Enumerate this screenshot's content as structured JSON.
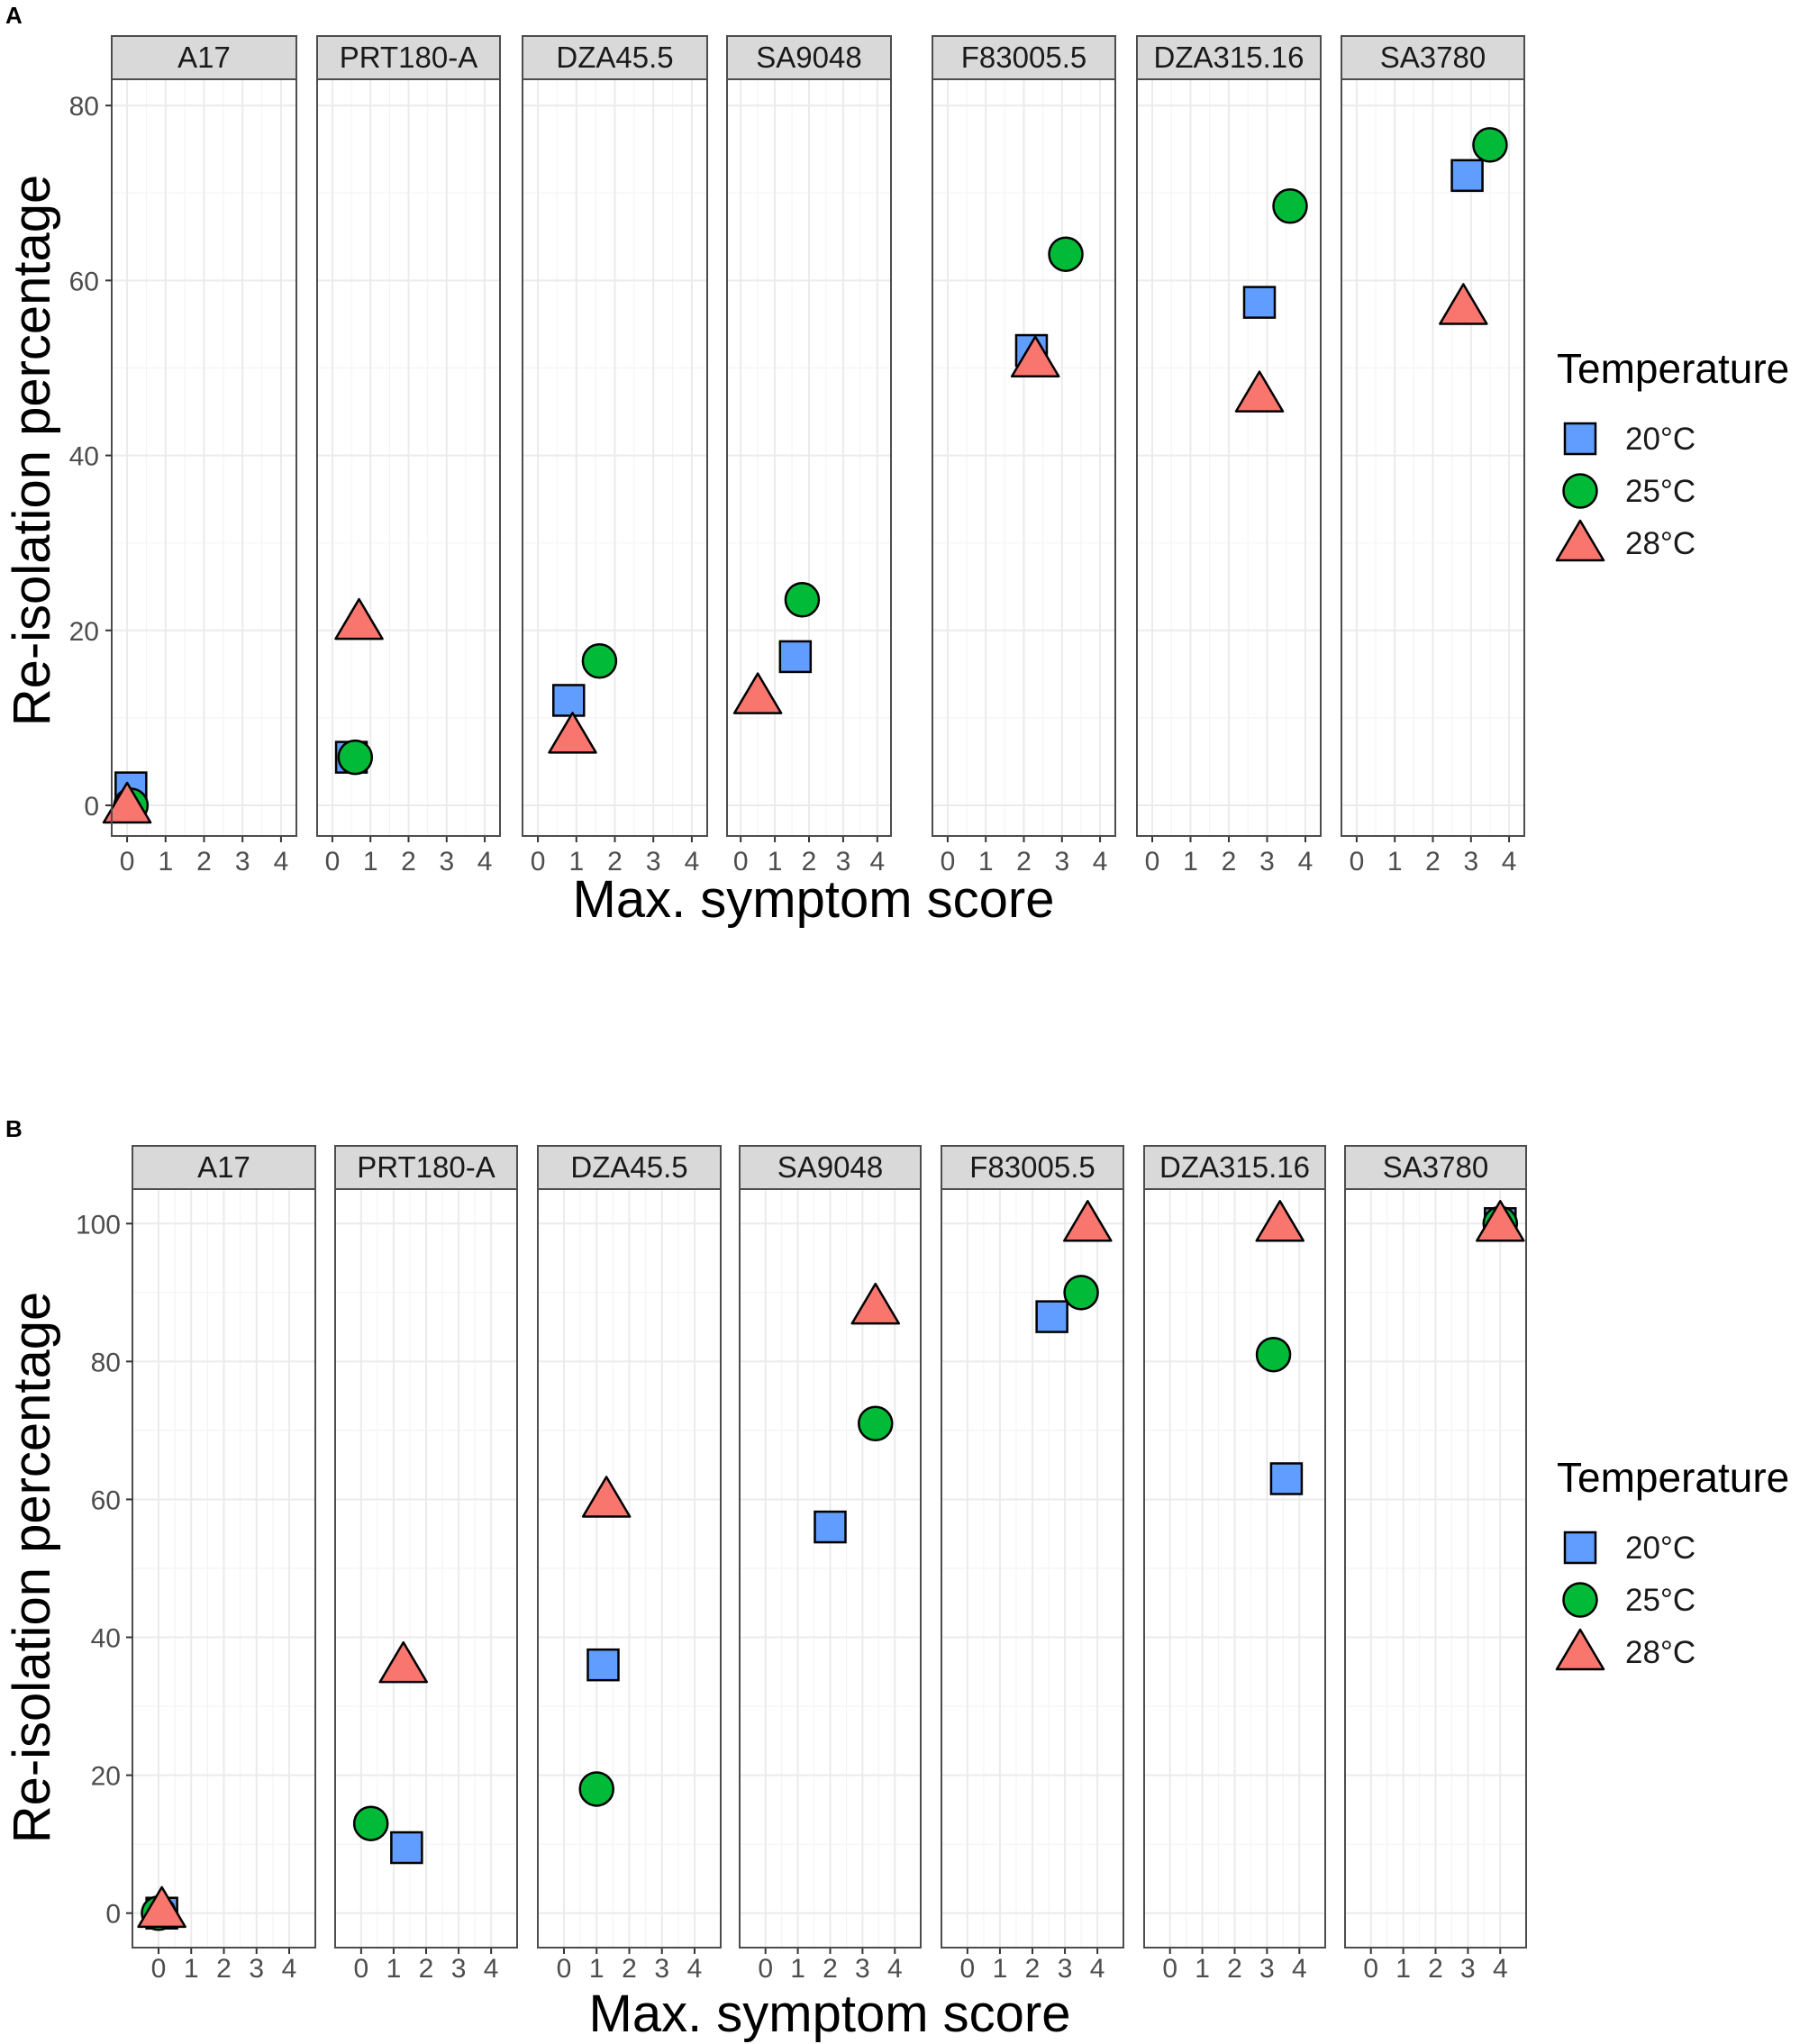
{
  "colors": {
    "20°C": "#619CFF",
    "25°C": "#00BA38",
    "28°C": "#F8766D"
  },
  "shapes": {
    "20°C": "square",
    "25°C": "circle",
    "28°C": "triangle"
  },
  "chart_data": [
    {
      "panel_label": "A",
      "type": "scatter",
      "facets": [
        "A17",
        "PRT180-A",
        "DZA45.5",
        "SA9048",
        "F83005.5",
        "DZA315.16",
        "SA3780"
      ],
      "xlabel": "Max. symptom score",
      "ylabel": "Re-isolation percentage",
      "xlim": [
        -0.4,
        4.4
      ],
      "ylim": [
        -3.5,
        83
      ],
      "x_ticks": [
        0,
        1,
        2,
        3,
        4
      ],
      "y_ticks": [
        0,
        20,
        40,
        60,
        80
      ],
      "legend_title": "Temperature",
      "legend_entries": [
        "20°C",
        "25°C",
        "28°C"
      ],
      "series": [
        {
          "name": "20°C",
          "points": [
            {
              "facet": "A17",
              "x": 0.1,
              "y": 2
            },
            {
              "facet": "PRT180-A",
              "x": 0.5,
              "y": 5.5
            },
            {
              "facet": "DZA45.5",
              "x": 0.8,
              "y": 12
            },
            {
              "facet": "SA9048",
              "x": 1.6,
              "y": 17
            },
            {
              "facet": "F83005.5",
              "x": 2.2,
              "y": 52
            },
            {
              "facet": "DZA315.16",
              "x": 2.8,
              "y": 57.5
            },
            {
              "facet": "SA3780",
              "x": 2.9,
              "y": 72
            }
          ]
        },
        {
          "name": "25°C",
          "points": [
            {
              "facet": "A17",
              "x": 0.1,
              "y": 0
            },
            {
              "facet": "PRT180-A",
              "x": 0.6,
              "y": 5.5
            },
            {
              "facet": "DZA45.5",
              "x": 1.6,
              "y": 16.5
            },
            {
              "facet": "SA9048",
              "x": 1.8,
              "y": 23.5
            },
            {
              "facet": "F83005.5",
              "x": 3.1,
              "y": 63
            },
            {
              "facet": "DZA315.16",
              "x": 3.6,
              "y": 68.5
            },
            {
              "facet": "SA3780",
              "x": 3.5,
              "y": 75.5
            }
          ]
        },
        {
          "name": "28°C",
          "points": [
            {
              "facet": "A17",
              "x": 0.0,
              "y": 0
            },
            {
              "facet": "PRT180-A",
              "x": 0.7,
              "y": 21
            },
            {
              "facet": "DZA45.5",
              "x": 0.9,
              "y": 8
            },
            {
              "facet": "SA9048",
              "x": 0.5,
              "y": 12.5
            },
            {
              "facet": "F83005.5",
              "x": 2.3,
              "y": 51
            },
            {
              "facet": "DZA315.16",
              "x": 2.8,
              "y": 47
            },
            {
              "facet": "SA3780",
              "x": 2.8,
              "y": 57
            }
          ]
        }
      ]
    },
    {
      "panel_label": "B",
      "type": "scatter",
      "facets": [
        "A17",
        "PRT180-A",
        "DZA45.5",
        "SA9048",
        "F83005.5",
        "DZA315.16",
        "SA3780"
      ],
      "xlabel": "Max. symptom score",
      "ylabel": "Re-isolation percentage",
      "xlim": [
        -0.8,
        4.8
      ],
      "ylim": [
        -5,
        105
      ],
      "x_ticks": [
        0,
        1,
        2,
        3,
        4
      ],
      "y_ticks": [
        0,
        20,
        40,
        60,
        80,
        100
      ],
      "legend_title": "Temperature",
      "legend_entries": [
        "20°C",
        "25°C",
        "28°C"
      ],
      "series": [
        {
          "name": "20°C",
          "points": [
            {
              "facet": "A17",
              "x": 0.1,
              "y": 0
            },
            {
              "facet": "PRT180-A",
              "x": 1.4,
              "y": 9.5
            },
            {
              "facet": "DZA45.5",
              "x": 1.2,
              "y": 36
            },
            {
              "facet": "SA9048",
              "x": 2.0,
              "y": 56
            },
            {
              "facet": "F83005.5",
              "x": 2.6,
              "y": 86.5
            },
            {
              "facet": "DZA315.16",
              "x": 3.6,
              "y": 63
            },
            {
              "facet": "SA3780",
              "x": 4.0,
              "y": 100
            }
          ]
        },
        {
          "name": "25°C",
          "points": [
            {
              "facet": "A17",
              "x": 0.0,
              "y": 0
            },
            {
              "facet": "PRT180-A",
              "x": 0.3,
              "y": 13
            },
            {
              "facet": "DZA45.5",
              "x": 1.0,
              "y": 18
            },
            {
              "facet": "SA9048",
              "x": 3.4,
              "y": 71
            },
            {
              "facet": "F83005.5",
              "x": 3.5,
              "y": 90
            },
            {
              "facet": "DZA315.16",
              "x": 3.2,
              "y": 81
            },
            {
              "facet": "SA3780",
              "x": 4.0,
              "y": 100
            }
          ]
        },
        {
          "name": "28°C",
          "points": [
            {
              "facet": "A17",
              "x": 0.1,
              "y": 0.5
            },
            {
              "facet": "PRT180-A",
              "x": 1.3,
              "y": 36
            },
            {
              "facet": "DZA45.5",
              "x": 1.3,
              "y": 60
            },
            {
              "facet": "SA9048",
              "x": 3.4,
              "y": 88
            },
            {
              "facet": "F83005.5",
              "x": 3.7,
              "y": 100
            },
            {
              "facet": "DZA315.16",
              "x": 3.4,
              "y": 100
            },
            {
              "facet": "SA3780",
              "x": 4.0,
              "y": 100
            }
          ]
        }
      ]
    }
  ]
}
